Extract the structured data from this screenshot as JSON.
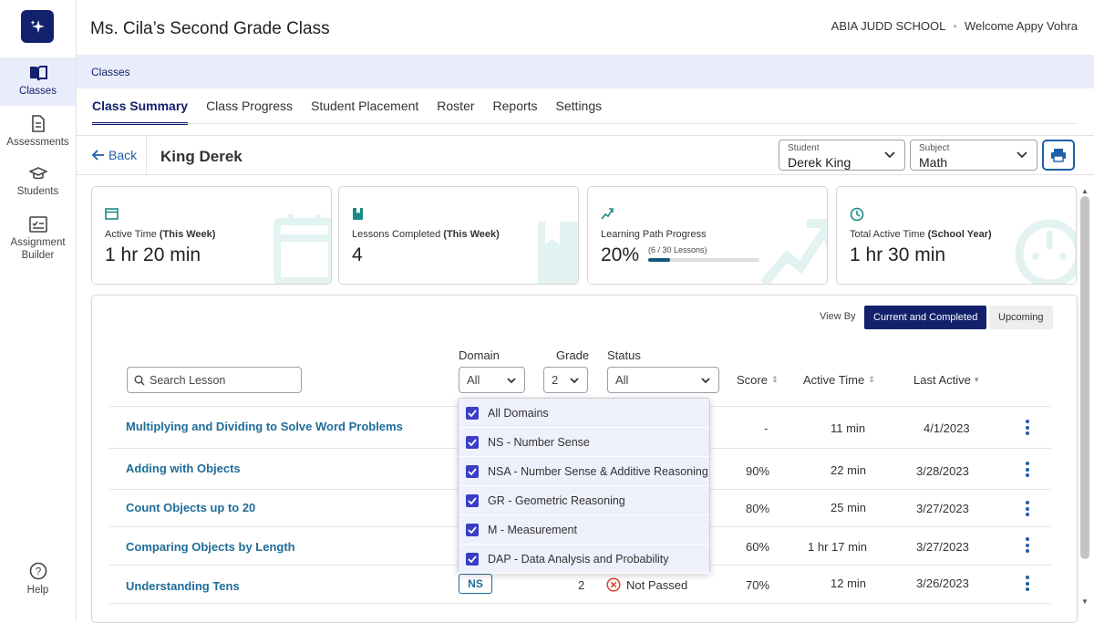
{
  "app": {
    "title": "Ms. Cila’s Second Grade Class",
    "school": "ABIA JUDD SCHOOL",
    "welcome": "Welcome Appy Vohra"
  },
  "sidebar": {
    "items": [
      {
        "label": "Classes",
        "icon": "book-icon"
      },
      {
        "label": "Assessments",
        "icon": "document-icon"
      },
      {
        "label": "Students",
        "icon": "graduation-cap-icon"
      },
      {
        "label": "Assignment Builder",
        "icon": "checklist-icon"
      }
    ],
    "help": "Help"
  },
  "breadcrumb": "Classes",
  "tabs": [
    "Class Summary",
    "Class Progress",
    "Student Placement",
    "Roster",
    "Reports",
    "Settings"
  ],
  "subheader": {
    "back": "Back",
    "student_name": "King Derek"
  },
  "selectors": {
    "student": {
      "label": "Student",
      "value": "Derek King"
    },
    "subject": {
      "label": "Subject",
      "value": "Math"
    }
  },
  "cards": [
    {
      "label": "Active Time ",
      "bold": "(This Week)",
      "value": "1 hr 20 min"
    },
    {
      "label": "Lessons Completed ",
      "bold": "(This Week)",
      "value": "4"
    },
    {
      "label": "Learning Path Progress",
      "bold": "",
      "value": "20%",
      "sub": "(6 / 30 Lessons)",
      "progress": 0.2
    },
    {
      "label": "Total Active Time ",
      "bold": "(School Year)",
      "value": "1 hr 30 min"
    }
  ],
  "view_by": {
    "label": "View By",
    "active": "Current and Completed",
    "inactive": "Upcoming"
  },
  "filters": {
    "search_placeholder": "Search Lesson",
    "domain_label": "Domain",
    "domain_value": "All",
    "grade_label": "Grade",
    "grade_value": "2",
    "status_label": "Status",
    "status_value": "All"
  },
  "columns": {
    "score": "Score",
    "active_time": "Active Time",
    "last_active": "Last Active"
  },
  "domain_options": [
    "All Domains",
    "NS - Number Sense",
    "NSA - Number Sense & Additive Reasoning",
    "GR - Geometric Reasoning",
    "M - Measurement",
    "DAP - Data Analysis and Probability"
  ],
  "rows": [
    {
      "lesson": "Multiplying and Dividing to Solve Word Problems",
      "score": "-",
      "time": "11 min",
      "date": "4/1/2023"
    },
    {
      "lesson": "Adding with Objects",
      "score": "90%",
      "time": "22 min",
      "date": "3/28/2023"
    },
    {
      "lesson": "Count Objects up to 20",
      "score": "80%",
      "time": "25 min",
      "date": "3/27/2023"
    },
    {
      "lesson": "Comparing Objects by Length",
      "score": "60%",
      "time": "1 hr 17 min",
      "date": "3/27/2023"
    },
    {
      "lesson": "Understanding Tens",
      "domain": "NS",
      "grade": "2",
      "status": "Not Passed",
      "score": "70%",
      "time": "12 min",
      "date": "3/26/2023"
    }
  ],
  "colors": {
    "navy": "#13206b",
    "link": "#1f6c99",
    "accent": "#3a3ec4",
    "light_bg": "#e9edfb"
  }
}
